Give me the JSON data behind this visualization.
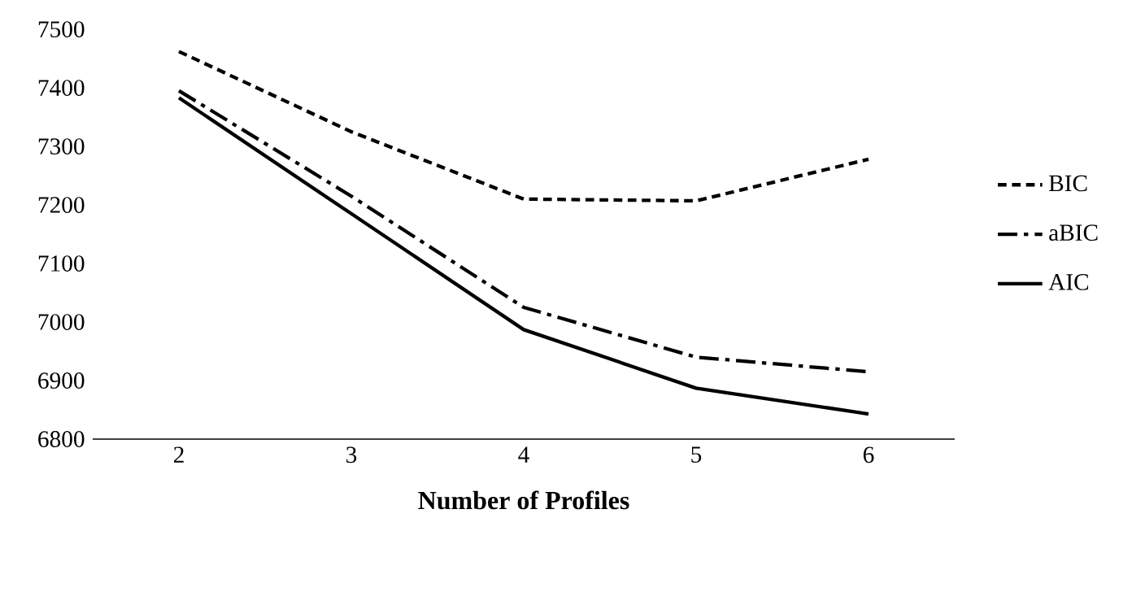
{
  "chart_data": {
    "type": "line",
    "xlabel": "Number of Profiles",
    "categories": [
      "2",
      "3",
      "4",
      "5",
      "6"
    ],
    "series": [
      {
        "name": "BIC",
        "color": "#000000",
        "line_style": "dashed",
        "values": [
          7462,
          7325,
          7210,
          7207,
          7278
        ]
      },
      {
        "name": "aBIC",
        "color": "#000000",
        "line_style": "dashdot",
        "values": [
          7395,
          7215,
          7025,
          6940,
          6915
        ]
      },
      {
        "name": "AIC",
        "color": "#000000",
        "line_style": "solid",
        "values": [
          7383,
          7185,
          6987,
          6887,
          6843
        ]
      }
    ],
    "ylim": [
      6800,
      7500
    ],
    "yticks": [
      6800,
      6900,
      7000,
      7100,
      7200,
      7300,
      7400,
      7500
    ],
    "legend": "right",
    "marker": "none",
    "grid": false
  }
}
